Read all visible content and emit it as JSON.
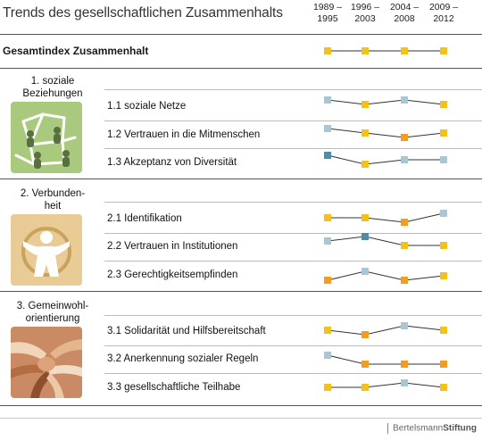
{
  "title": "Trends des gesellschaftlichen Zusammenhalts",
  "periods": [
    {
      "line1": "1989 –",
      "line2": "1995"
    },
    {
      "line1": "1996 –",
      "line2": "2003"
    },
    {
      "line1": "2004 –",
      "line2": "2008"
    },
    {
      "line1": "2009 –",
      "line2": "2012"
    }
  ],
  "colors": {
    "yellow": "#f2c21b",
    "orange": "#f39c1f",
    "lightblue": "#a9c6d3",
    "teal": "#4a8fa6",
    "icon_green": "#a9c97d",
    "icon_beige": "#e9cc95",
    "icon_brown": "#c98a64"
  },
  "icons": {
    "section1": "people-network-icon",
    "section2": "person-circle-icon",
    "section3": "stacked-hands-icon"
  },
  "logo": {
    "part1": "Bertelsmann",
    "part2": "Stiftung"
  },
  "chart_data": {
    "type": "line",
    "title": "Trends des gesellschaftlichen Zusammenhalts",
    "x": [
      "1989 – 1995",
      "1996 – 2003",
      "2004 – 2008",
      "2009 – 2012"
    ],
    "overall": {
      "label": "Gesamtindex Zusammenhalt",
      "levels": [
        0,
        0,
        0,
        0
      ],
      "colors": [
        "yellow",
        "yellow",
        "yellow",
        "yellow"
      ]
    },
    "sections": [
      {
        "title_line1": "1. soziale",
        "title_line2": "Beziehungen",
        "rows": [
          {
            "label": "1.1 soziale Netze",
            "levels": [
              1,
              0,
              1,
              0
            ],
            "colors": [
              "lightblue",
              "yellow",
              "lightblue",
              "yellow"
            ]
          },
          {
            "label": "1.2 Vertrauen in die Mitmenschen",
            "levels": [
              1,
              0,
              -1,
              0
            ],
            "colors": [
              "lightblue",
              "yellow",
              "orange",
              "yellow"
            ]
          },
          {
            "label": "1.3 Akzeptanz von Diversität",
            "levels": [
              1,
              -1,
              0,
              0
            ],
            "colors": [
              "teal",
              "yellow",
              "lightblue",
              "lightblue"
            ]
          }
        ]
      },
      {
        "title_line1": "2. Verbunden-",
        "title_line2": "heit",
        "rows": [
          {
            "label": "2.1 Identifikation",
            "levels": [
              0,
              0,
              -1,
              1
            ],
            "colors": [
              "yellow",
              "yellow",
              "orange",
              "lightblue"
            ]
          },
          {
            "label": "2.2 Vertrauen in Institutionen",
            "levels": [
              0,
              1,
              -1,
              -1
            ],
            "colors": [
              "lightblue",
              "teal",
              "yellow",
              "yellow"
            ]
          },
          {
            "label": "2.3 Gerechtigkeitsempfinden",
            "levels": [
              -1,
              1,
              -1,
              0
            ],
            "colors": [
              "orange",
              "lightblue",
              "orange",
              "yellow"
            ]
          }
        ]
      },
      {
        "title_line1": "3. Gemeinwohl-",
        "title_line2": "orientierung",
        "rows": [
          {
            "label": "3.1 Solidarität und Hilfsbereitschaft",
            "levels": [
              0,
              -1,
              1,
              0
            ],
            "colors": [
              "yellow",
              "orange",
              "lightblue",
              "yellow"
            ]
          },
          {
            "label": "3.2 Anerkennung sozialer Regeln",
            "levels": [
              1,
              -1,
              -1,
              -1
            ],
            "colors": [
              "lightblue",
              "orange",
              "orange",
              "orange"
            ]
          },
          {
            "label": "3.3 gesellschaftliche Teilhabe",
            "levels": [
              0,
              0,
              1,
              0
            ],
            "colors": [
              "yellow",
              "yellow",
              "lightblue",
              "yellow"
            ]
          }
        ]
      }
    ]
  }
}
